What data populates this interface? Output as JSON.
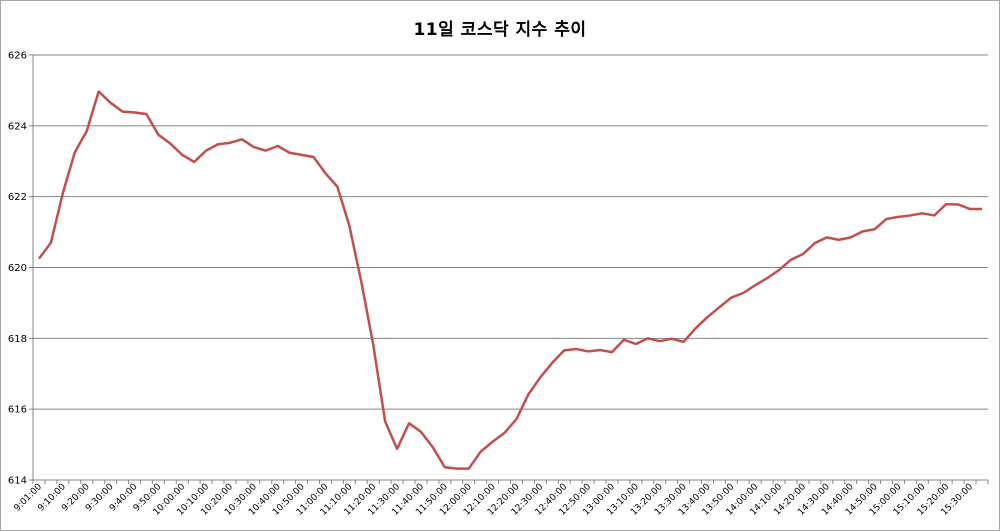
{
  "chart_data": {
    "type": "line",
    "title": "11일 코스닥 지수 추이",
    "xlabel": "",
    "ylabel": "",
    "ylim": [
      614,
      626
    ],
    "yticks": [
      614,
      616,
      618,
      620,
      622,
      624,
      626
    ],
    "grid": true,
    "legend": "none",
    "line_color": "#c0504d",
    "x_tick_labels": [
      "9:01:00",
      "9:10:00",
      "9:20:00",
      "9:30:00",
      "9:40:00",
      "9:50:00",
      "10:00:00",
      "10:10:00",
      "10:20:00",
      "10:30:00",
      "10:40:00",
      "10:50:00",
      "11:00:00",
      "11:10:00",
      "11:20:00",
      "11:30:00",
      "11:40:00",
      "11:50:00",
      "12:00:00",
      "12:10:00",
      "12:20:00",
      "12:30:00",
      "12:40:00",
      "12:50:00",
      "13:00:00",
      "13:10:00",
      "13:20:00",
      "13:30:00",
      "13:40:00",
      "13:50:00",
      "14:00:00",
      "14:10:00",
      "14:20:00",
      "14:30:00",
      "14:40:00",
      "14:50:00",
      "15:00:00",
      "15:10:00",
      "15:20:00",
      "15:30:00"
    ],
    "series": [
      {
        "values": [
          620.25,
          620.7,
          622.1,
          623.25,
          623.85,
          624.97,
          624.65,
          624.4,
          624.38,
          624.33,
          623.75,
          623.5,
          623.18,
          622.98,
          623.3,
          623.48,
          623.52,
          623.62,
          623.4,
          623.3,
          623.43,
          623.24,
          623.18,
          623.12,
          622.66,
          622.28,
          621.18,
          619.6,
          617.82,
          615.65,
          614.88,
          615.6,
          615.36,
          614.92,
          614.36,
          614.32,
          614.32,
          614.8,
          615.08,
          615.33,
          615.72,
          616.42,
          616.9,
          617.31,
          617.66,
          617.7,
          617.63,
          617.67,
          617.61,
          617.96,
          617.84,
          618.0,
          617.92,
          617.99,
          617.9,
          618.28,
          618.6,
          618.88,
          619.15,
          619.28,
          619.5,
          619.7,
          619.93,
          620.22,
          620.38,
          620.69,
          620.85,
          620.78,
          620.85,
          621.02,
          621.08,
          621.37,
          621.43,
          621.47,
          621.53,
          621.47,
          621.79,
          621.78,
          621.65,
          621.65
        ]
      }
    ]
  }
}
